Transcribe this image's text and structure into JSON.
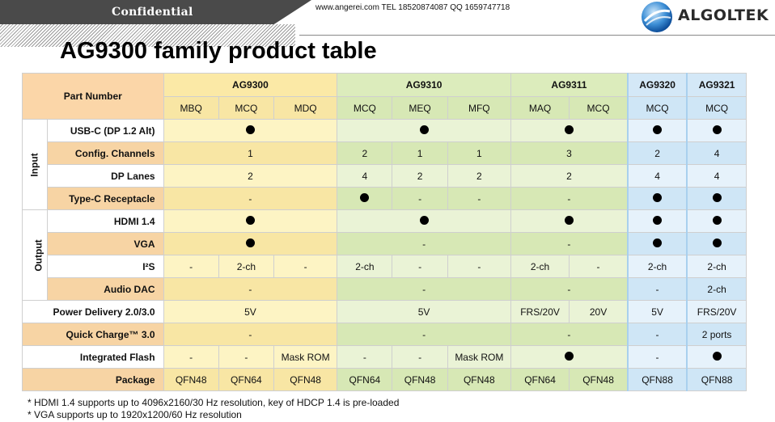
{
  "header": {
    "confidential": "Confidential",
    "contact": "www.angerei.com  TEL 18520874087  QQ 1659747718",
    "logo_text": "ALGOLTEK"
  },
  "title": "AG9300 family product table",
  "table": {
    "part_number_label": "Part Number",
    "groups": {
      "ag9300": "AG9300",
      "ag9310": "AG9310",
      "ag9311": "AG9311",
      "ag9320": "AG9320",
      "ag9321": "AG9321"
    },
    "variants": [
      "MBQ",
      "MCQ",
      "MDQ",
      "MCQ",
      "MEQ",
      "MFQ",
      "MAQ",
      "MCQ",
      "MCQ",
      "MCQ"
    ],
    "sections": {
      "input": "Input",
      "output": "Output"
    },
    "rows": {
      "usbc": {
        "label": "USB-C (DP 1.2 Alt)"
      },
      "config": {
        "label": "Config. Channels",
        "ag9300": "1",
        "ag9310_mcq": "2",
        "ag9310_meq": "1",
        "ag9310_mfq": "1",
        "ag9311": "3",
        "ag9320": "2",
        "ag9321": "4"
      },
      "dplanes": {
        "label": "DP Lanes",
        "ag9300": "2",
        "ag9310_mcq": "4",
        "ag9310_meq": "2",
        "ag9310_mfq": "2",
        "ag9311": "2",
        "ag9320": "4",
        "ag9321": "4"
      },
      "typec": {
        "label": "Type-C Receptacle",
        "ag9300": "-",
        "ag9310_meq": "-",
        "ag9310_mfq": "-",
        "ag9311": "-"
      },
      "hdmi": {
        "label": "HDMI 1.4"
      },
      "vga": {
        "label": "VGA",
        "ag9310": "-",
        "ag9311": "-"
      },
      "i2s": {
        "label": "I²S",
        "ag9300_mbq": "-",
        "ag9300_mcq": "2-ch",
        "ag9300_mdq": "-",
        "ag9310_mcq": "2-ch",
        "ag9310_meq": "-",
        "ag9310_mfq": "-",
        "ag9311_maq": "2-ch",
        "ag9311_mcq": "-",
        "ag9320": "2-ch",
        "ag9321": "2-ch"
      },
      "audiodac": {
        "label": "Audio DAC",
        "ag9300": "-",
        "ag9310": "-",
        "ag9311": "-",
        "ag9320": "-",
        "ag9321": "2-ch"
      },
      "pd": {
        "label": "Power Delivery 2.0/3.0",
        "ag9300": "5V",
        "ag9310": "5V",
        "ag9311_maq": "FRS/20V",
        "ag9311_mcq": "20V",
        "ag9320": "5V",
        "ag9321": "FRS/20V"
      },
      "qc": {
        "label": "Quick Charge™ 3.0",
        "ag9300": "-",
        "ag9310": "-",
        "ag9311": "-",
        "ag9320": "-",
        "ag9321": "2 ports"
      },
      "flash": {
        "label": "Integrated Flash",
        "ag9300_mbq": "-",
        "ag9300_mcq": "-",
        "ag9300_mdq": "Mask ROM",
        "ag9310_mcq": "-",
        "ag9310_meq": "-",
        "ag9310_mfq": "Mask ROM",
        "ag9320": "-"
      },
      "package": {
        "label": "Package",
        "values": [
          "QFN48",
          "QFN64",
          "QFN48",
          "QFN64",
          "QFN48",
          "QFN48",
          "QFN64",
          "QFN48",
          "QFN88",
          "QFN88"
        ]
      }
    }
  },
  "notes": [
    "* HDMI 1.4 supports up to 4096x2160/30 Hz resolution, key of HDCP 1.4 is pre-loaded",
    "* VGA supports up to 1920x1200/60 Hz resolution"
  ]
}
